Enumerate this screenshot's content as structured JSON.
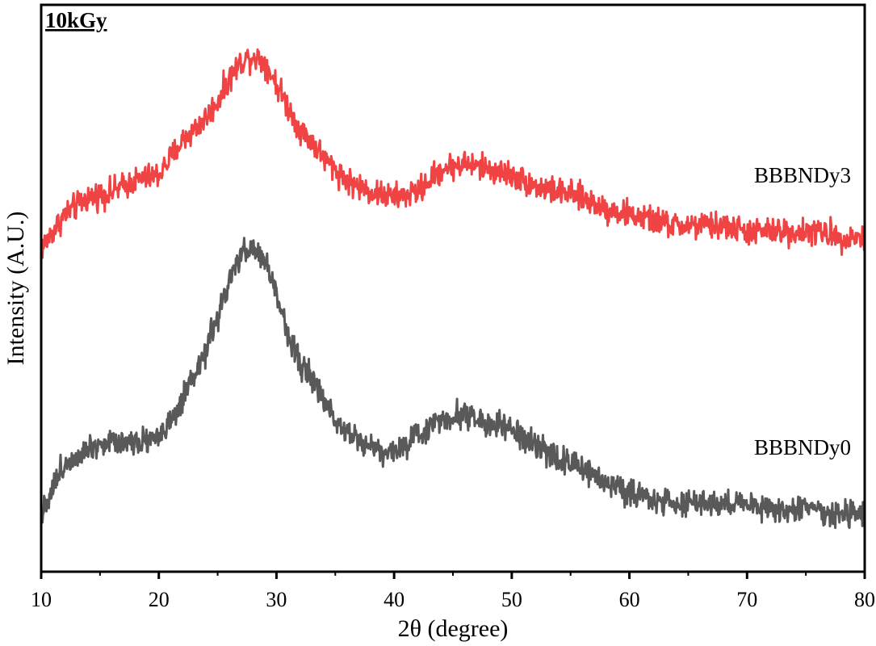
{
  "chart_data": {
    "type": "line",
    "panel_label": "10kGy",
    "xlabel": "2θ (degree)",
    "ylabel": "Intensity (A.U.)",
    "xlim": [
      10,
      80
    ],
    "ylim": [
      0,
      1
    ],
    "x_ticks": [
      10,
      20,
      30,
      40,
      50,
      60,
      70,
      80
    ],
    "x_tick_labels": [
      "10",
      "20",
      "30",
      "40",
      "50",
      "60",
      "70",
      "80"
    ],
    "y_ticks_labeled": false,
    "grid": false,
    "legend": "none (series labelled inline at right)",
    "series": [
      {
        "name": "BBBNDy3",
        "color": "#f04444",
        "noise_amplitude": 0.035,
        "x": [
          10,
          11,
          12,
          14,
          16,
          18,
          20,
          21,
          22,
          23,
          24,
          25,
          26,
          27,
          28,
          29,
          30,
          31,
          32,
          33,
          34,
          35,
          36,
          38,
          40,
          42,
          44,
          46,
          48,
          50,
          52,
          54,
          56,
          58,
          60,
          62,
          64,
          66,
          68,
          70,
          72,
          74,
          76,
          78,
          80
        ],
        "y": [
          0.57,
          0.6,
          0.63,
          0.66,
          0.67,
          0.69,
          0.7,
          0.73,
          0.76,
          0.78,
          0.8,
          0.83,
          0.87,
          0.9,
          0.91,
          0.9,
          0.86,
          0.82,
          0.78,
          0.76,
          0.73,
          0.71,
          0.69,
          0.67,
          0.66,
          0.67,
          0.71,
          0.72,
          0.71,
          0.7,
          0.68,
          0.67,
          0.66,
          0.64,
          0.63,
          0.62,
          0.61,
          0.61,
          0.61,
          0.6,
          0.6,
          0.6,
          0.6,
          0.59,
          0.59
        ]
      },
      {
        "name": "BBBNDy0",
        "color": "#595959",
        "noise_amplitude": 0.035,
        "x": [
          10,
          11,
          12,
          14,
          16,
          18,
          20,
          21,
          22,
          23,
          24,
          25,
          26,
          27,
          28,
          29,
          30,
          31,
          32,
          33,
          34,
          35,
          36,
          38,
          40,
          42,
          44,
          46,
          48,
          50,
          52,
          54,
          56,
          58,
          60,
          62,
          64,
          66,
          68,
          70,
          72,
          74,
          76,
          78,
          80
        ],
        "y": [
          0.1,
          0.15,
          0.19,
          0.22,
          0.23,
          0.23,
          0.24,
          0.26,
          0.3,
          0.34,
          0.39,
          0.45,
          0.51,
          0.56,
          0.57,
          0.55,
          0.49,
          0.42,
          0.37,
          0.34,
          0.3,
          0.27,
          0.25,
          0.22,
          0.21,
          0.24,
          0.27,
          0.28,
          0.26,
          0.25,
          0.22,
          0.2,
          0.18,
          0.16,
          0.14,
          0.13,
          0.12,
          0.12,
          0.12,
          0.12,
          0.11,
          0.11,
          0.11,
          0.1,
          0.1
        ]
      }
    ]
  }
}
